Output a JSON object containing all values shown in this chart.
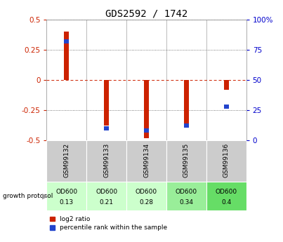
{
  "title": "GDS2592 / 1742",
  "samples": [
    "GSM99132",
    "GSM99133",
    "GSM99134",
    "GSM99135",
    "GSM99136"
  ],
  "log2_ratio": [
    0.4,
    -0.38,
    -0.48,
    -0.36,
    -0.08
  ],
  "percentile_rank": [
    82,
    10,
    8,
    12,
    28
  ],
  "growth_protocol_line1": [
    "OD600",
    "OD600",
    "OD600",
    "OD600",
    "OD600"
  ],
  "growth_protocol_line2": [
    "0.13",
    "0.21",
    "0.28",
    "0.34",
    "0.4"
  ],
  "growth_colors": [
    "#ccffcc",
    "#ccffcc",
    "#ccffcc",
    "#99ee99",
    "#66dd66"
  ],
  "bar_width": 0.12,
  "ylim": [
    -0.5,
    0.5
  ],
  "left_yticks": [
    -0.5,
    -0.25,
    0,
    0.25,
    0.5
  ],
  "right_yticks": [
    0,
    25,
    50,
    75,
    100
  ],
  "red_color": "#cc2200",
  "blue_color": "#2244cc",
  "zero_line_color": "#cc2200",
  "left_tick_color": "#cc2200",
  "right_tick_color": "#0000cc",
  "sample_bg_color": "#cccccc",
  "chart_bg_color": "#ffffff"
}
